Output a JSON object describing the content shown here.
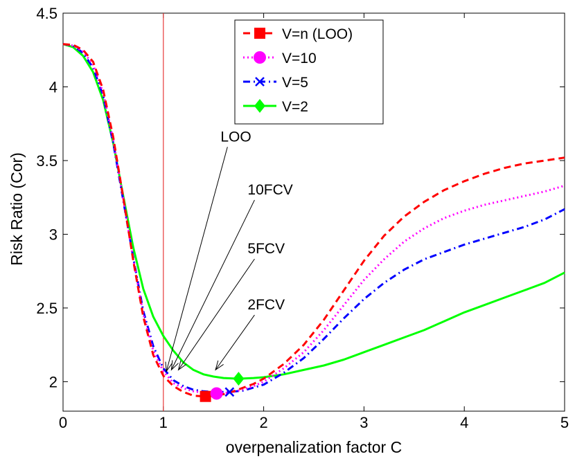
{
  "chart_data": {
    "type": "line",
    "title": "",
    "xlabel": "overpenalization factor C",
    "ylabel": "Risk Ratio (Cor)",
    "xlim": [
      0,
      5
    ],
    "ylim": [
      1.8,
      4.5
    ],
    "xticks": [
      0,
      1,
      2,
      3,
      4,
      5
    ],
    "xtick_labels": [
      "0",
      "1",
      "2",
      "3",
      "4",
      "5"
    ],
    "yticks": [
      2,
      2.5,
      3,
      3.5,
      4,
      4.5
    ],
    "ytick_labels": [
      "2",
      "2.5",
      "3",
      "3.5",
      "4",
      "4.5"
    ],
    "grid": false,
    "legend_position": "top-center",
    "vertical_reference_line": {
      "x": 1,
      "color": "#e83a3a"
    },
    "series": [
      {
        "name": "V=n (LOO)",
        "color": "#ff0000",
        "line_style": "dashed",
        "marker": "square",
        "marker_point": {
          "x": 1.42,
          "y": 1.9
        },
        "points": [
          [
            0,
            4.29
          ],
          [
            0.1,
            4.285
          ],
          [
            0.2,
            4.25
          ],
          [
            0.3,
            4.17
          ],
          [
            0.4,
            3.98
          ],
          [
            0.5,
            3.66
          ],
          [
            0.6,
            3.25
          ],
          [
            0.7,
            2.82
          ],
          [
            0.8,
            2.44
          ],
          [
            0.9,
            2.18
          ],
          [
            1.0,
            2.04
          ],
          [
            1.1,
            1.97
          ],
          [
            1.2,
            1.93
          ],
          [
            1.3,
            1.905
          ],
          [
            1.42,
            1.9
          ],
          [
            1.5,
            1.905
          ],
          [
            1.6,
            1.915
          ],
          [
            1.7,
            1.935
          ],
          [
            1.8,
            1.96
          ],
          [
            1.9,
            1.985
          ],
          [
            2.0,
            2.02
          ],
          [
            2.2,
            2.12
          ],
          [
            2.4,
            2.25
          ],
          [
            2.6,
            2.42
          ],
          [
            2.8,
            2.62
          ],
          [
            3.0,
            2.82
          ],
          [
            3.2,
            2.99
          ],
          [
            3.4,
            3.12
          ],
          [
            3.6,
            3.22
          ],
          [
            3.8,
            3.3
          ],
          [
            4.0,
            3.36
          ],
          [
            4.2,
            3.41
          ],
          [
            4.4,
            3.45
          ],
          [
            4.6,
            3.48
          ],
          [
            4.8,
            3.5
          ],
          [
            5.0,
            3.52
          ]
        ]
      },
      {
        "name": "V=10",
        "color": "#ff00ff",
        "line_style": "dotted",
        "marker": "circle",
        "marker_point": {
          "x": 1.53,
          "y": 1.92
        },
        "points": [
          [
            0,
            4.29
          ],
          [
            0.1,
            4.28
          ],
          [
            0.2,
            4.24
          ],
          [
            0.3,
            4.15
          ],
          [
            0.4,
            3.96
          ],
          [
            0.5,
            3.64
          ],
          [
            0.6,
            3.24
          ],
          [
            0.7,
            2.83
          ],
          [
            0.8,
            2.46
          ],
          [
            0.9,
            2.21
          ],
          [
            1.0,
            2.07
          ],
          [
            1.1,
            1.99
          ],
          [
            1.2,
            1.955
          ],
          [
            1.3,
            1.935
          ],
          [
            1.4,
            1.925
          ],
          [
            1.53,
            1.92
          ],
          [
            1.6,
            1.922
          ],
          [
            1.7,
            1.93
          ],
          [
            1.8,
            1.95
          ],
          [
            1.9,
            1.97
          ],
          [
            2.0,
            2.0
          ],
          [
            2.2,
            2.09
          ],
          [
            2.4,
            2.2
          ],
          [
            2.6,
            2.35
          ],
          [
            2.8,
            2.52
          ],
          [
            3.0,
            2.69
          ],
          [
            3.2,
            2.83
          ],
          [
            3.4,
            2.95
          ],
          [
            3.6,
            3.04
          ],
          [
            3.8,
            3.11
          ],
          [
            4.0,
            3.16
          ],
          [
            4.2,
            3.2
          ],
          [
            4.4,
            3.23
          ],
          [
            4.6,
            3.26
          ],
          [
            4.8,
            3.29
          ],
          [
            5.0,
            3.33
          ]
        ]
      },
      {
        "name": "V=5",
        "color": "#0000ff",
        "line_style": "dashdot",
        "marker": "x",
        "marker_point": {
          "x": 1.66,
          "y": 1.93
        },
        "points": [
          [
            0,
            4.29
          ],
          [
            0.1,
            4.28
          ],
          [
            0.2,
            4.23
          ],
          [
            0.3,
            4.13
          ],
          [
            0.4,
            3.94
          ],
          [
            0.5,
            3.62
          ],
          [
            0.6,
            3.23
          ],
          [
            0.7,
            2.84
          ],
          [
            0.8,
            2.48
          ],
          [
            0.9,
            2.24
          ],
          [
            1.0,
            2.09
          ],
          [
            1.1,
            2.01
          ],
          [
            1.2,
            1.97
          ],
          [
            1.3,
            1.945
          ],
          [
            1.4,
            1.935
          ],
          [
            1.5,
            1.93
          ],
          [
            1.66,
            1.93
          ],
          [
            1.8,
            1.94
          ],
          [
            1.9,
            1.96
          ],
          [
            2.0,
            1.98
          ],
          [
            2.2,
            2.06
          ],
          [
            2.4,
            2.16
          ],
          [
            2.6,
            2.29
          ],
          [
            2.8,
            2.43
          ],
          [
            3.0,
            2.56
          ],
          [
            3.2,
            2.67
          ],
          [
            3.4,
            2.76
          ],
          [
            3.6,
            2.83
          ],
          [
            3.8,
            2.88
          ],
          [
            4.0,
            2.93
          ],
          [
            4.2,
            2.97
          ],
          [
            4.4,
            3.01
          ],
          [
            4.6,
            3.05
          ],
          [
            4.8,
            3.1
          ],
          [
            5.0,
            3.17
          ]
        ]
      },
      {
        "name": "V=2",
        "color": "#00ff00",
        "line_style": "solid",
        "marker": "diamond",
        "marker_point": {
          "x": 1.75,
          "y": 2.02
        },
        "points": [
          [
            0,
            4.29
          ],
          [
            0.1,
            4.27
          ],
          [
            0.2,
            4.21
          ],
          [
            0.3,
            4.1
          ],
          [
            0.4,
            3.91
          ],
          [
            0.5,
            3.62
          ],
          [
            0.6,
            3.26
          ],
          [
            0.7,
            2.91
          ],
          [
            0.8,
            2.63
          ],
          [
            0.9,
            2.44
          ],
          [
            1.0,
            2.31
          ],
          [
            1.1,
            2.21
          ],
          [
            1.2,
            2.13
          ],
          [
            1.3,
            2.08
          ],
          [
            1.4,
            2.05
          ],
          [
            1.5,
            2.035
          ],
          [
            1.6,
            2.025
          ],
          [
            1.75,
            2.02
          ],
          [
            1.9,
            2.025
          ],
          [
            2.0,
            2.03
          ],
          [
            2.2,
            2.05
          ],
          [
            2.4,
            2.08
          ],
          [
            2.6,
            2.11
          ],
          [
            2.8,
            2.15
          ],
          [
            3.0,
            2.2
          ],
          [
            3.2,
            2.25
          ],
          [
            3.4,
            2.3
          ],
          [
            3.6,
            2.35
          ],
          [
            3.8,
            2.41
          ],
          [
            4.0,
            2.47
          ],
          [
            4.2,
            2.52
          ],
          [
            4.4,
            2.57
          ],
          [
            4.6,
            2.62
          ],
          [
            4.8,
            2.67
          ],
          [
            5.0,
            2.74
          ]
        ]
      }
    ],
    "annotations": [
      {
        "text": "LOO",
        "text_at": {
          "x": 1.57,
          "y": 3.63
        },
        "arrow_to": {
          "x": 1.03,
          "y": 2.07
        }
      },
      {
        "text": "10FCV",
        "text_at": {
          "x": 1.84,
          "y": 3.27
        },
        "arrow_to": {
          "x": 1.08,
          "y": 2.08
        }
      },
      {
        "text": "5FCV",
        "text_at": {
          "x": 1.84,
          "y": 2.87
        },
        "arrow_to": {
          "x": 1.15,
          "y": 2.08
        }
      },
      {
        "text": "2FCV",
        "text_at": {
          "x": 1.84,
          "y": 2.49
        },
        "arrow_to": {
          "x": 1.52,
          "y": 2.08
        }
      }
    ]
  }
}
